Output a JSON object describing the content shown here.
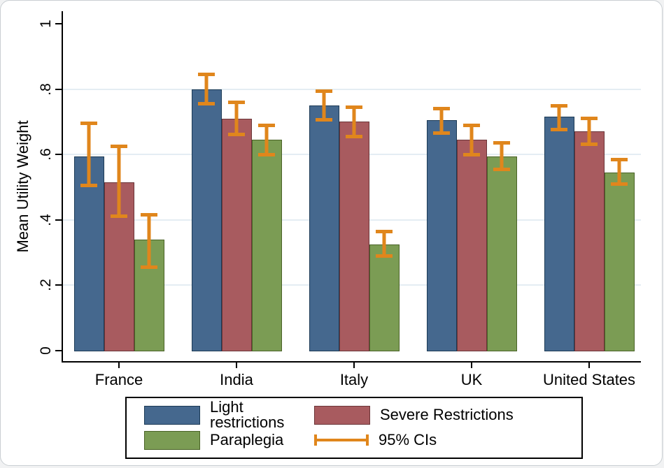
{
  "figure": {
    "background": "#ffffff",
    "page_background": "#f1f2f3",
    "border_color": "#c9ced2"
  },
  "chart_data": {
    "type": "bar",
    "title": "",
    "xlabel": "",
    "ylabel": "Mean Utility Weight",
    "ylim": [
      0,
      1
    ],
    "grid": true,
    "grid_color": "#e4edf3",
    "axis_color": "#000000",
    "legend_position": "bottom",
    "yticks": [
      {
        "value": 0,
        "label": "0"
      },
      {
        "value": 0.2,
        "label": ".2"
      },
      {
        "value": 0.4,
        "label": ".4"
      },
      {
        "value": 0.6,
        "label": ".6"
      },
      {
        "value": 0.8,
        "label": ".8"
      },
      {
        "value": 1,
        "label": "1"
      }
    ],
    "gridlines_at": [
      0.2,
      0.4,
      0.6,
      0.8
    ],
    "categories": [
      "France",
      "India",
      "Italy",
      "UK",
      "United States"
    ],
    "series": [
      {
        "name": "Light restrictions",
        "color": "#45688E",
        "border_color": "#1c3a55",
        "values": [
          0.595,
          0.8,
          0.75,
          0.705,
          0.715
        ],
        "ci_low": [
          0.5,
          0.75,
          0.7,
          0.66,
          0.67
        ],
        "ci_high": [
          0.7,
          0.85,
          0.8,
          0.745,
          0.755
        ]
      },
      {
        "name": "Severe Restrictions",
        "color": "#A85B5F",
        "border_color": "#6b3538",
        "values": [
          0.515,
          0.71,
          0.7,
          0.645,
          0.67
        ],
        "ci_low": [
          0.405,
          0.655,
          0.65,
          0.595,
          0.625
        ],
        "ci_high": [
          0.63,
          0.765,
          0.75,
          0.695,
          0.715
        ]
      },
      {
        "name": "Paraplegia",
        "color": "#7B9C54",
        "border_color": "#4a6327",
        "values": [
          0.34,
          0.645,
          0.325,
          0.595,
          0.545
        ],
        "ci_low": [
          0.25,
          0.595,
          0.285,
          0.55,
          0.505
        ],
        "ci_high": [
          0.42,
          0.695,
          0.37,
          0.64,
          0.59
        ]
      }
    ],
    "ci_legend_label": "95% CIs",
    "ci_color": "#E0861C"
  }
}
